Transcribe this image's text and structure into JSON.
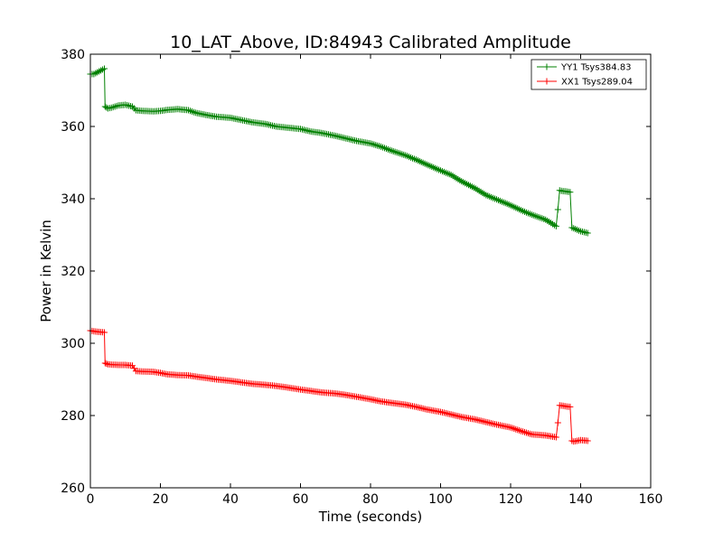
{
  "chart_data": {
    "type": "line",
    "title": "10_LAT_Above, ID:84943 Calibrated Amplitude",
    "xlabel": "Time (seconds)",
    "ylabel": "Power in Kelvin",
    "xlim": [
      0,
      160
    ],
    "ylim": [
      260,
      380
    ],
    "xticks": [
      "0",
      "20",
      "40",
      "60",
      "80",
      "100",
      "120",
      "140",
      "160"
    ],
    "yticks": [
      "260",
      "280",
      "300",
      "320",
      "340",
      "360",
      "380"
    ],
    "grid": false,
    "legend_position": "top-right",
    "marker": "+",
    "series": [
      {
        "name": "YY1 Tsys384.83",
        "color": "#008000",
        "x": [
          0,
          1,
          2,
          3,
          4,
          4.2,
          5,
          6,
          8,
          10,
          12,
          13,
          15,
          18,
          20,
          22,
          25,
          28,
          30,
          33,
          36,
          40,
          43,
          46,
          50,
          53,
          56,
          60,
          63,
          66,
          70,
          73,
          76,
          80,
          83,
          86,
          90,
          93,
          96,
          100,
          103,
          106,
          110,
          113,
          116,
          120,
          123,
          126,
          130,
          133,
          133.5,
          134,
          135,
          136,
          137,
          137.5,
          138,
          140,
          142
        ],
        "y": [
          374.5,
          374.5,
          375,
          375.5,
          376,
          365.5,
          365,
          365.2,
          365.8,
          366,
          365.5,
          364.5,
          364.3,
          364.2,
          364.3,
          364.6,
          364.8,
          364.5,
          363.8,
          363.2,
          362.7,
          362.4,
          361.8,
          361.2,
          360.7,
          360,
          359.7,
          359.3,
          358.6,
          358.2,
          357.4,
          356.7,
          356,
          355.3,
          354.4,
          353.3,
          352,
          350.8,
          349.5,
          347.8,
          346.6,
          344.8,
          342.8,
          341,
          339.8,
          338.2,
          336.8,
          335.6,
          334.2,
          332.4,
          337,
          342.3,
          342.1,
          342,
          341.8,
          332,
          331.8,
          331,
          330.5
        ]
      },
      {
        "name": "XX1 Tsys289.04",
        "color": "#ff0000",
        "x": [
          0,
          1,
          2,
          3,
          4,
          4.2,
          5,
          6,
          8,
          10,
          12,
          13,
          15,
          18,
          20,
          22,
          25,
          28,
          30,
          33,
          36,
          40,
          43,
          46,
          50,
          53,
          56,
          60,
          63,
          66,
          70,
          73,
          76,
          80,
          83,
          86,
          90,
          93,
          96,
          100,
          103,
          106,
          110,
          113,
          116,
          120,
          123,
          126,
          130,
          133,
          133.5,
          134,
          135,
          136,
          137,
          137.5,
          138,
          140,
          142
        ],
        "y": [
          303.5,
          303.3,
          303.2,
          303.1,
          303,
          294.5,
          294.2,
          294.1,
          294,
          294,
          293.8,
          292.3,
          292.2,
          292.1,
          291.8,
          291.4,
          291.2,
          291.1,
          290.8,
          290.4,
          290,
          289.6,
          289.2,
          288.8,
          288.5,
          288.2,
          287.8,
          287.2,
          286.8,
          286.4,
          286.1,
          285.7,
          285.2,
          284.5,
          283.9,
          283.5,
          283,
          282.4,
          281.7,
          281,
          280.3,
          279.6,
          278.9,
          278.2,
          277.5,
          276.7,
          275.7,
          274.8,
          274.5,
          274,
          278,
          282.8,
          282.7,
          282.5,
          282.4,
          273,
          272.8,
          273.2,
          273
        ]
      }
    ]
  }
}
